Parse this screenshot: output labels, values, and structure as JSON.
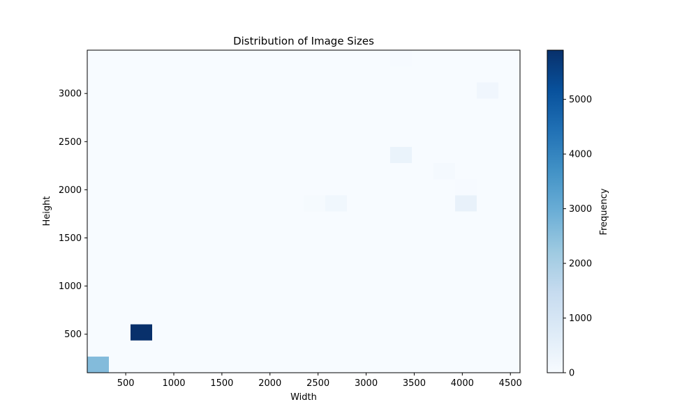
{
  "chart_data": {
    "type": "heatmap",
    "title": "Distribution of Image Sizes",
    "xlabel": "Width",
    "ylabel": "Height",
    "xlim": [
      100,
      4600
    ],
    "ylim": [
      100,
      3450
    ],
    "x_ticks": [
      500,
      1000,
      1500,
      2000,
      2500,
      3000,
      3500,
      4000,
      4500
    ],
    "y_ticks": [
      500,
      1000,
      1500,
      2000,
      2500,
      3000
    ],
    "colorbar": {
      "label": "Frequency",
      "range": [
        0,
        5900
      ],
      "ticks": [
        0,
        1000,
        2000,
        3000,
        4000,
        5000
      ],
      "colormap": "Blues"
    },
    "bin_width": 225,
    "bin_height": 167.5,
    "background_value": 0,
    "cells": [
      {
        "x_range": [
          100,
          325
        ],
        "y_range": [
          100,
          267.5
        ],
        "value": 2600
      },
      {
        "x_range": [
          550,
          775
        ],
        "y_range": [
          435,
          602.5
        ],
        "value": 5900
      },
      {
        "x_range": [
          2350,
          2575
        ],
        "y_range": [
          1775,
          1942.5
        ],
        "value": 60
      },
      {
        "x_range": [
          2575,
          2800
        ],
        "y_range": [
          1775,
          1942.5
        ],
        "value": 200
      },
      {
        "x_range": [
          3250,
          3475
        ],
        "y_range": [
          2277.5,
          2445
        ],
        "value": 380
      },
      {
        "x_range": [
          3700,
          3925
        ],
        "y_range": [
          2110,
          2277.5
        ],
        "value": 80
      },
      {
        "x_range": [
          3925,
          4150
        ],
        "y_range": [
          1775,
          1942.5
        ],
        "value": 450
      },
      {
        "x_range": [
          3925,
          4150
        ],
        "y_range": [
          1942.5,
          2110
        ],
        "value": 40
      },
      {
        "x_range": [
          4150,
          4375
        ],
        "y_range": [
          2947.5,
          3115
        ],
        "value": 220
      },
      {
        "x_range": [
          3250,
          3475
        ],
        "y_range": [
          3282.5,
          3450
        ],
        "value": 30
      }
    ]
  }
}
